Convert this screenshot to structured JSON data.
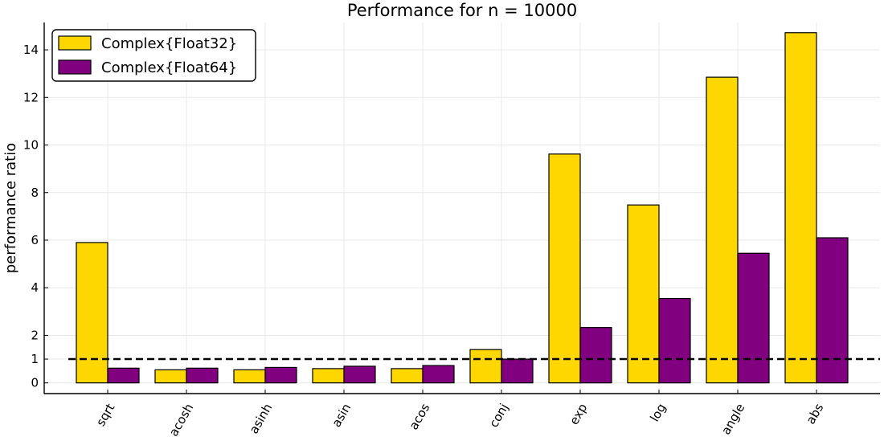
{
  "chart_data": {
    "type": "bar",
    "title": "Performance for n = 10000",
    "xlabel": "",
    "ylabel": "performance ratio",
    "categories": [
      "sqrt",
      "acosh",
      "asinh",
      "asin",
      "acos",
      "conj",
      "exp",
      "log",
      "angle",
      "abs"
    ],
    "series": [
      {
        "name": "Complex{Float32}",
        "color": "#FFD700",
        "values": [
          5.9,
          0.55,
          0.55,
          0.6,
          0.6,
          1.4,
          9.62,
          7.48,
          12.85,
          14.72
        ]
      },
      {
        "name": "Complex{Float64}",
        "color": "#800080",
        "values": [
          0.62,
          0.62,
          0.65,
          0.7,
          0.73,
          1.0,
          2.33,
          3.55,
          5.45,
          6.1
        ]
      }
    ],
    "reference_line": {
      "y": 1,
      "style": "dashed",
      "color": "#000000"
    },
    "ylim": [
      -0.45,
      15.15
    ],
    "yticks": [
      0,
      1,
      2,
      4,
      6,
      8,
      10,
      12,
      14
    ],
    "grid": true,
    "legend_position": "top-left"
  }
}
